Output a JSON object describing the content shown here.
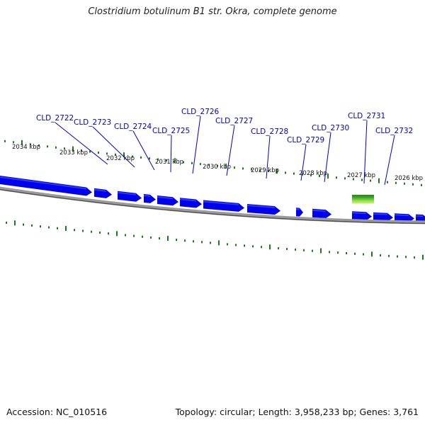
{
  "title": "Clostridium botulinum B1 str. Okra, complete genome",
  "footer": {
    "accession": "Accession: NC_010516",
    "topology": "Topology: circular; Length: 3,958,233 bp; Genes: 3,761"
  },
  "ruler_labels": [
    "2034 kbp",
    "2033 kbp",
    "2032 kbp",
    "2031 kbp",
    "2030 kbp",
    "2029 kbp",
    "2028 kbp",
    "2027 kbp",
    "2026 kbp"
  ],
  "gene_labels": [
    "CLD_2722",
    "CLD_2723",
    "CLD_2724",
    "CLD_2725",
    "CLD_2726",
    "CLD_2727",
    "CLD_2728",
    "CLD_2729",
    "CLD_2730",
    "CLD_2731",
    "CLD_2732"
  ],
  "colors": {
    "gene": "#0000ee",
    "gene_highlight": "#4d6bff",
    "backbone": "#888888",
    "tick": "#1a7a1a",
    "label": "#0000cc",
    "gc_dark": "#2e8b1e",
    "gc_light": "#b8f050"
  }
}
